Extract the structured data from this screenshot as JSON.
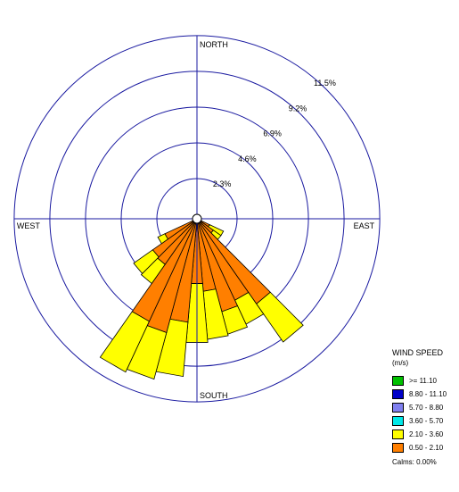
{
  "chart_data": {
    "type": "wind-rose",
    "directions": [
      "NORTH",
      "EAST",
      "SOUTH",
      "WEST"
    ],
    "ring_percent": [
      2.3,
      4.6,
      6.9,
      9.2,
      11.5
    ],
    "ring_labels": [
      "2.3%",
      "4.6%",
      "6.9%",
      "9.2%",
      "11.5%"
    ],
    "sector_width_deg": 10,
    "legend": {
      "title": "WIND SPEED",
      "units": "(m/s)",
      "classes": [
        {
          "label": ">= 11.10",
          "color": "#00c000"
        },
        {
          "label": "8.80 - 11.10",
          "color": "#0000c8"
        },
        {
          "label": "5.70 - 8.80",
          "color": "#8080f0"
        },
        {
          "label": "3.60 - 5.70",
          "color": "#00e8e8"
        },
        {
          "label": "2.10 - 3.60",
          "color": "#ffff00"
        },
        {
          "label": "0.50 - 2.10",
          "color": "#ff7f00"
        }
      ],
      "calms": "Calms: 0.00%"
    },
    "sectors": [
      {
        "dir": 120,
        "orange": 0.6,
        "yellow": 1.0
      },
      {
        "dir": 130,
        "orange": 1.0,
        "yellow": 0.6
      },
      {
        "dir": 140,
        "orange": 6.4,
        "yellow": 3.0
      },
      {
        "dir": 150,
        "orange": 5.5,
        "yellow": 1.7
      },
      {
        "dir": 160,
        "orange": 5.9,
        "yellow": 1.5
      },
      {
        "dir": 170,
        "orange": 4.4,
        "yellow": 3.1
      },
      {
        "dir": 180,
        "orange": 3.9,
        "yellow": 3.8
      },
      {
        "dir": 190,
        "orange": 6.4,
        "yellow": 3.5
      },
      {
        "dir": 200,
        "orange": 7.3,
        "yellow": 3.1
      },
      {
        "dir": 210,
        "orange": 7.0,
        "yellow": 3.6
      },
      {
        "dir": 220,
        "orange": 3.3,
        "yellow": 1.5
      },
      {
        "dir": 230,
        "orange": 3.2,
        "yellow": 1.5
      },
      {
        "dir": 240,
        "orange": 2.0,
        "yellow": 0.5
      }
    ]
  }
}
